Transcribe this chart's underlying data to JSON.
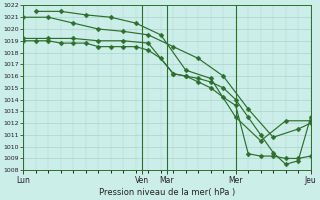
{
  "background_color": "#cceee8",
  "grid_color": "#aad4cc",
  "line_color": "#2d6e2d",
  "ylim": [
    1008,
    1022
  ],
  "yticks": [
    1008,
    1009,
    1010,
    1011,
    1012,
    1013,
    1014,
    1015,
    1016,
    1017,
    1018,
    1019,
    1020,
    1021,
    1022
  ],
  "xlabel": "Pression niveau de la mer( hPa )",
  "day_labels": [
    "Lun",
    "Ven",
    "Mar",
    "Mer",
    "Jeu"
  ],
  "day_positions": [
    0,
    9.5,
    11.5,
    17,
    23
  ],
  "series": [
    {
      "x": [
        0,
        1,
        2,
        3,
        4,
        5,
        6,
        7,
        8,
        9,
        10,
        11,
        12,
        13,
        14,
        15,
        16,
        17,
        18,
        19,
        20,
        21,
        22,
        23
      ],
      "y": [
        1019.0,
        1019.0,
        1019.0,
        1018.8,
        1018.8,
        1018.8,
        1018.5,
        1018.5,
        1018.5,
        1018.5,
        1018.2,
        1017.5,
        1016.2,
        1016.0,
        1015.5,
        1015.0,
        1014.2,
        1013.5,
        1009.4,
        1009.2,
        1009.2,
        1009.0,
        1009.0,
        1009.2
      ]
    },
    {
      "x": [
        0,
        2,
        4,
        6,
        8,
        10,
        12,
        14,
        16,
        18,
        20,
        22,
        23
      ],
      "y": [
        1021.0,
        1021.0,
        1020.5,
        1020.0,
        1019.8,
        1019.5,
        1018.5,
        1017.5,
        1016.0,
        1013.2,
        1010.8,
        1011.5,
        1012.0
      ]
    },
    {
      "x": [
        1,
        3,
        5,
        7,
        9,
        11,
        13,
        15,
        17,
        19,
        21,
        23
      ],
      "y": [
        1021.5,
        1021.5,
        1021.2,
        1021.0,
        1020.5,
        1019.5,
        1016.5,
        1015.8,
        1012.5,
        1010.5,
        1012.2,
        1012.2
      ]
    },
    {
      "x": [
        0,
        2,
        4,
        6,
        8,
        10,
        12,
        13,
        14,
        15,
        16,
        17,
        18,
        19,
        20,
        21,
        22,
        23
      ],
      "y": [
        1019.2,
        1019.2,
        1019.2,
        1019.0,
        1019.0,
        1018.8,
        1016.2,
        1016.0,
        1015.8,
        1015.5,
        1015.0,
        1014.0,
        1012.5,
        1011.0,
        1009.5,
        1008.5,
        1008.8,
        1012.5
      ]
    }
  ],
  "vlines": [
    0,
    9.5,
    11.5,
    17,
    23
  ],
  "figsize": [
    3.2,
    2.0
  ],
  "dpi": 100
}
